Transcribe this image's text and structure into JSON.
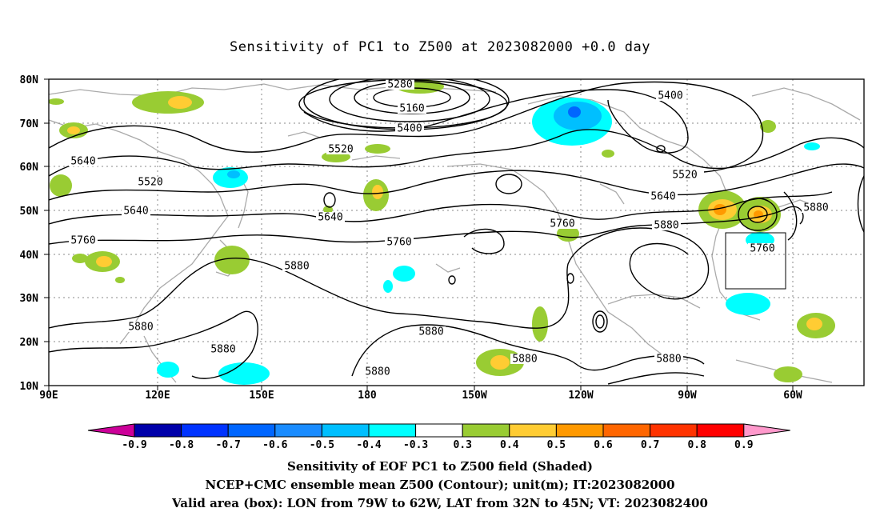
{
  "title": "Sensitivity of PC1 to Z500 at 2023082000 +0.0 day",
  "lat_labels": [
    "80N",
    "70N",
    "60N",
    "50N",
    "40N",
    "30N",
    "20N",
    "10N"
  ],
  "lon_labels": [
    "90E",
    "120E",
    "150E",
    "180",
    "150W",
    "120W",
    "90W",
    "60W"
  ],
  "contour_labels": [
    {
      "text": "5280"
    },
    {
      "text": "5160"
    },
    {
      "text": "5400"
    },
    {
      "text": "5400"
    },
    {
      "text": "5520"
    },
    {
      "text": "5520"
    },
    {
      "text": "5520"
    },
    {
      "text": "5640"
    },
    {
      "text": "5640"
    },
    {
      "text": "5640"
    },
    {
      "text": "5640"
    },
    {
      "text": "5760"
    },
    {
      "text": "5760"
    },
    {
      "text": "5760"
    },
    {
      "text": "5760"
    },
    {
      "text": "5880"
    },
    {
      "text": "5880"
    },
    {
      "text": "5880"
    },
    {
      "text": "5880"
    },
    {
      "text": "5880"
    },
    {
      "text": "5880"
    },
    {
      "text": "5880"
    },
    {
      "text": "5880"
    },
    {
      "text": "5880"
    }
  ],
  "colorbar": {
    "labels": [
      "-0.9",
      "-0.8",
      "-0.7",
      "-0.6",
      "-0.5",
      "-0.4",
      "-0.3",
      "0.3",
      "0.4",
      "0.5",
      "0.6",
      "0.7",
      "0.8",
      "0.9"
    ],
    "colors": [
      "#0000aa",
      "#0033ff",
      "#0066ff",
      "#1a8cff",
      "#00bfff",
      "#00ffff",
      "#ffffff",
      "#99cc33",
      "#ffcc33",
      "#ff9900",
      "#ff6600",
      "#ff3300",
      "#ff0000"
    ],
    "low_end_color": "#cc0099",
    "high_end_color": "#ff99cc"
  },
  "colors": {
    "contour": "#000000",
    "coastline": "#aaaaaa",
    "grid": "#888888"
  },
  "valid_box": {
    "lon_from": "79W",
    "lon_to": "62W",
    "lat_from": "32N",
    "lat_to": "45N"
  },
  "caption": {
    "line1": "Sensitivity of EOF PC1 to Z500 field (Shaded)",
    "line2": "NCEP+CMC ensemble mean Z500 (Contour); unit(m); IT:2023082000",
    "line3": "Valid area (box): LON from 79W to 62W, LAT from 32N to 45N; VT: 2023082400"
  }
}
